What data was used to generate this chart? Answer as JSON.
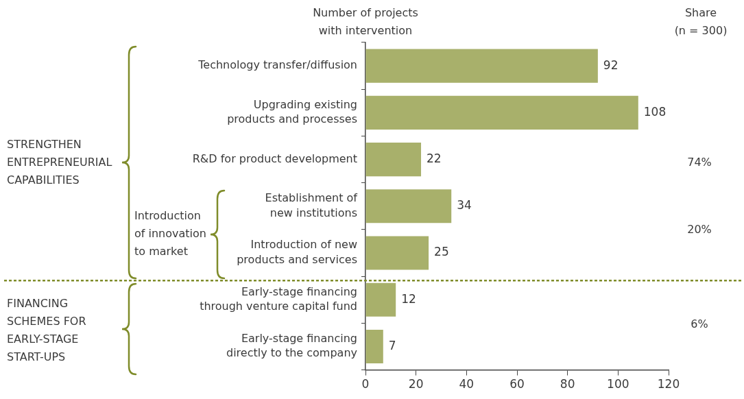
{
  "chart_data": {
    "type": "bar",
    "orientation": "horizontal",
    "xlabel": "Number of projects with intervention",
    "categories": [
      "Technology transfer/diffusion",
      "Upgrading existing products and processes",
      "R&D for product development",
      "Establishment of new institutions",
      "Introduction of new products and services",
      "Early-stage financing through venture capital fund",
      "Early-stage financing directly to the company"
    ],
    "values": [
      92,
      108,
      22,
      34,
      25,
      12,
      7
    ],
    "color": "#a8b06b",
    "xlim": [
      0,
      120
    ],
    "xticks": [
      0,
      20,
      40,
      60,
      80,
      100,
      120
    ],
    "grid": false,
    "legend": false,
    "data_labels": true,
    "annotations": [
      "STRENGTHEN ENTREPRENEURIAL CAPABILITIES",
      "Introduction of innovation to market",
      "FINANCING SCHEMES FOR EARLY-STAGE START-UPS",
      "Share (n = 300)",
      "74%",
      "20%",
      "6%"
    ]
  }
}
